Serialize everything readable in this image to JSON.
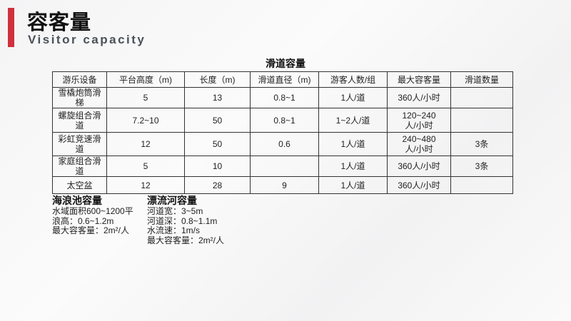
{
  "header": {
    "title": "容客量",
    "subtitle": "Visitor capacity",
    "accent": "#d0313d"
  },
  "table": {
    "title": "滑道容量",
    "columns": [
      "游乐设备",
      "平台高度（m)",
      "长度（m)",
      "滑道直径（m)",
      "游客人数/组",
      "最大容客量",
      "滑道数量"
    ],
    "rows": [
      [
        "雪橇炮筒滑梯",
        "5",
        "13",
        "0.8~1",
        "1人/道",
        "360人/小时",
        ""
      ],
      [
        "螺旋组合滑道",
        "7.2~10",
        "50",
        "0.8~1",
        "1~2人/道",
        "120~240人/小时",
        ""
      ],
      [
        "彩虹竞速滑道",
        "12",
        "50",
        "0.6",
        "1人/道",
        "240~480人/小时",
        "3条"
      ],
      [
        "家庭组合滑道",
        "5",
        "10",
        "",
        "1人/道",
        "360人/小时",
        "3条"
      ],
      [
        "太空盆",
        "12",
        "28",
        "9",
        "1人/道",
        "360人/小时",
        ""
      ]
    ]
  },
  "wave_pool": {
    "title": "海浪池容量",
    "lines": [
      "水域面积600~1200平",
      "浪高：0.6~1.2m",
      "最大容客量：2m²/人"
    ]
  },
  "lazy_river": {
    "title": "漂流河容量",
    "lines": [
      "河道宽：3~5m",
      "河道深：0.8~1.1m",
      "水流速：1m/s",
      "最大容客量：2m²/人"
    ]
  }
}
